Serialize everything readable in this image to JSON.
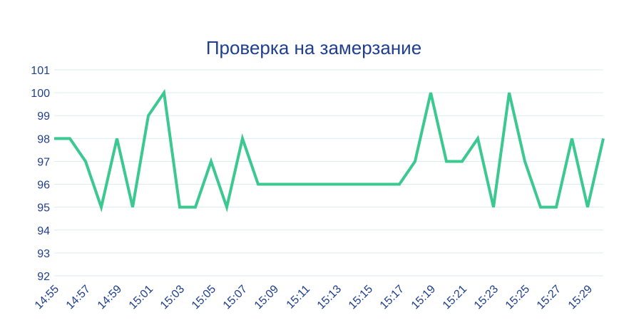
{
  "chart_data": {
    "type": "line",
    "title": "Проверка на замерзание",
    "xlabel": "",
    "ylabel": "",
    "ylim": [
      92,
      101
    ],
    "y_ticks": [
      92,
      93,
      94,
      95,
      96,
      97,
      98,
      99,
      100,
      101
    ],
    "x_tick_labels": [
      "14:55",
      "14:57",
      "14:59",
      "15:01",
      "15:03",
      "15:05",
      "15:07",
      "15:09",
      "15:11",
      "15:13",
      "15:15",
      "15:17",
      "15:19",
      "15:21",
      "15:23",
      "15:25",
      "15:27",
      "15:29"
    ],
    "x": [
      "14:55",
      "14:56",
      "14:57",
      "14:58",
      "14:59",
      "15:00",
      "15:01",
      "15:02",
      "15:03",
      "15:04",
      "15:05",
      "15:06",
      "15:07",
      "15:08",
      "15:09",
      "15:10",
      "15:11",
      "15:12",
      "15:13",
      "15:14",
      "15:15",
      "15:16",
      "15:17",
      "15:18",
      "15:19",
      "15:20",
      "15:21",
      "15:22",
      "15:23",
      "15:24",
      "15:25",
      "15:26",
      "15:27",
      "15:28",
      "15:29",
      "15:30"
    ],
    "series": [
      {
        "values": [
          98,
          98,
          97,
          95,
          98,
          95,
          99,
          100,
          95,
          95,
          97,
          95,
          98,
          96,
          96,
          96,
          96,
          96,
          96,
          96,
          96,
          96,
          96,
          97,
          100,
          97,
          97,
          98,
          95,
          100,
          97,
          95,
          95,
          98,
          95,
          98
        ],
        "color": "#3cc891"
      }
    ],
    "grid": true,
    "legend": "none",
    "colors": {
      "title": "#1f3f8f",
      "ticks": "#1f3f8f",
      "grid": "#d9eef0",
      "line": "#3cc891"
    }
  }
}
